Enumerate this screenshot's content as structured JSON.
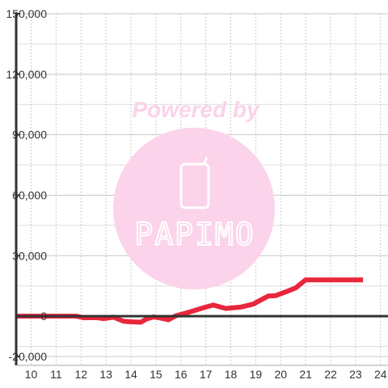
{
  "watermark": {
    "powered_by": "Powered by",
    "brand": "PAPIMO",
    "icon": "phone-icon",
    "color": "#fbd3ea"
  },
  "chart_data": {
    "type": "line",
    "title": "",
    "xlabel": "",
    "ylabel": "",
    "xlim": [
      9.4,
      24.3
    ],
    "ylim": [
      -20000,
      150000
    ],
    "xticks": [
      "10",
      "11",
      "12",
      "13",
      "14",
      "15",
      "16",
      "17",
      "18",
      "19",
      "20",
      "21",
      "22",
      "23",
      "24"
    ],
    "yticks": [
      "150,000",
      "120,000",
      "90,000",
      "60,000",
      "30,000",
      "0",
      "-20,000"
    ],
    "grid": true,
    "legend": "none",
    "series": [
      {
        "color": "#e8263c",
        "x": [
          9.4,
          10,
          11,
          11.8,
          12.1,
          12.6,
          12.9,
          13.3,
          13.7,
          14.0,
          14.4,
          14.6,
          14.9,
          15.2,
          15.5,
          15.8,
          16.2,
          16.6,
          17.0,
          17.3,
          17.8,
          18.4,
          18.9,
          19.2,
          19.5,
          19.8,
          20.3,
          20.6,
          20.8,
          21.0,
          21.5,
          22,
          22.5,
          23,
          23.3
        ],
        "y": [
          0,
          0,
          0,
          0,
          -800,
          -700,
          -1200,
          -500,
          -2500,
          -2800,
          -3000,
          -1500,
          -400,
          -1000,
          -1800,
          200,
          1500,
          3000,
          4500,
          5500,
          3800,
          4500,
          6000,
          8000,
          10000,
          10200,
          12500,
          14000,
          16000,
          18000,
          18000,
          18000,
          18000,
          18000,
          18000
        ]
      }
    ]
  }
}
